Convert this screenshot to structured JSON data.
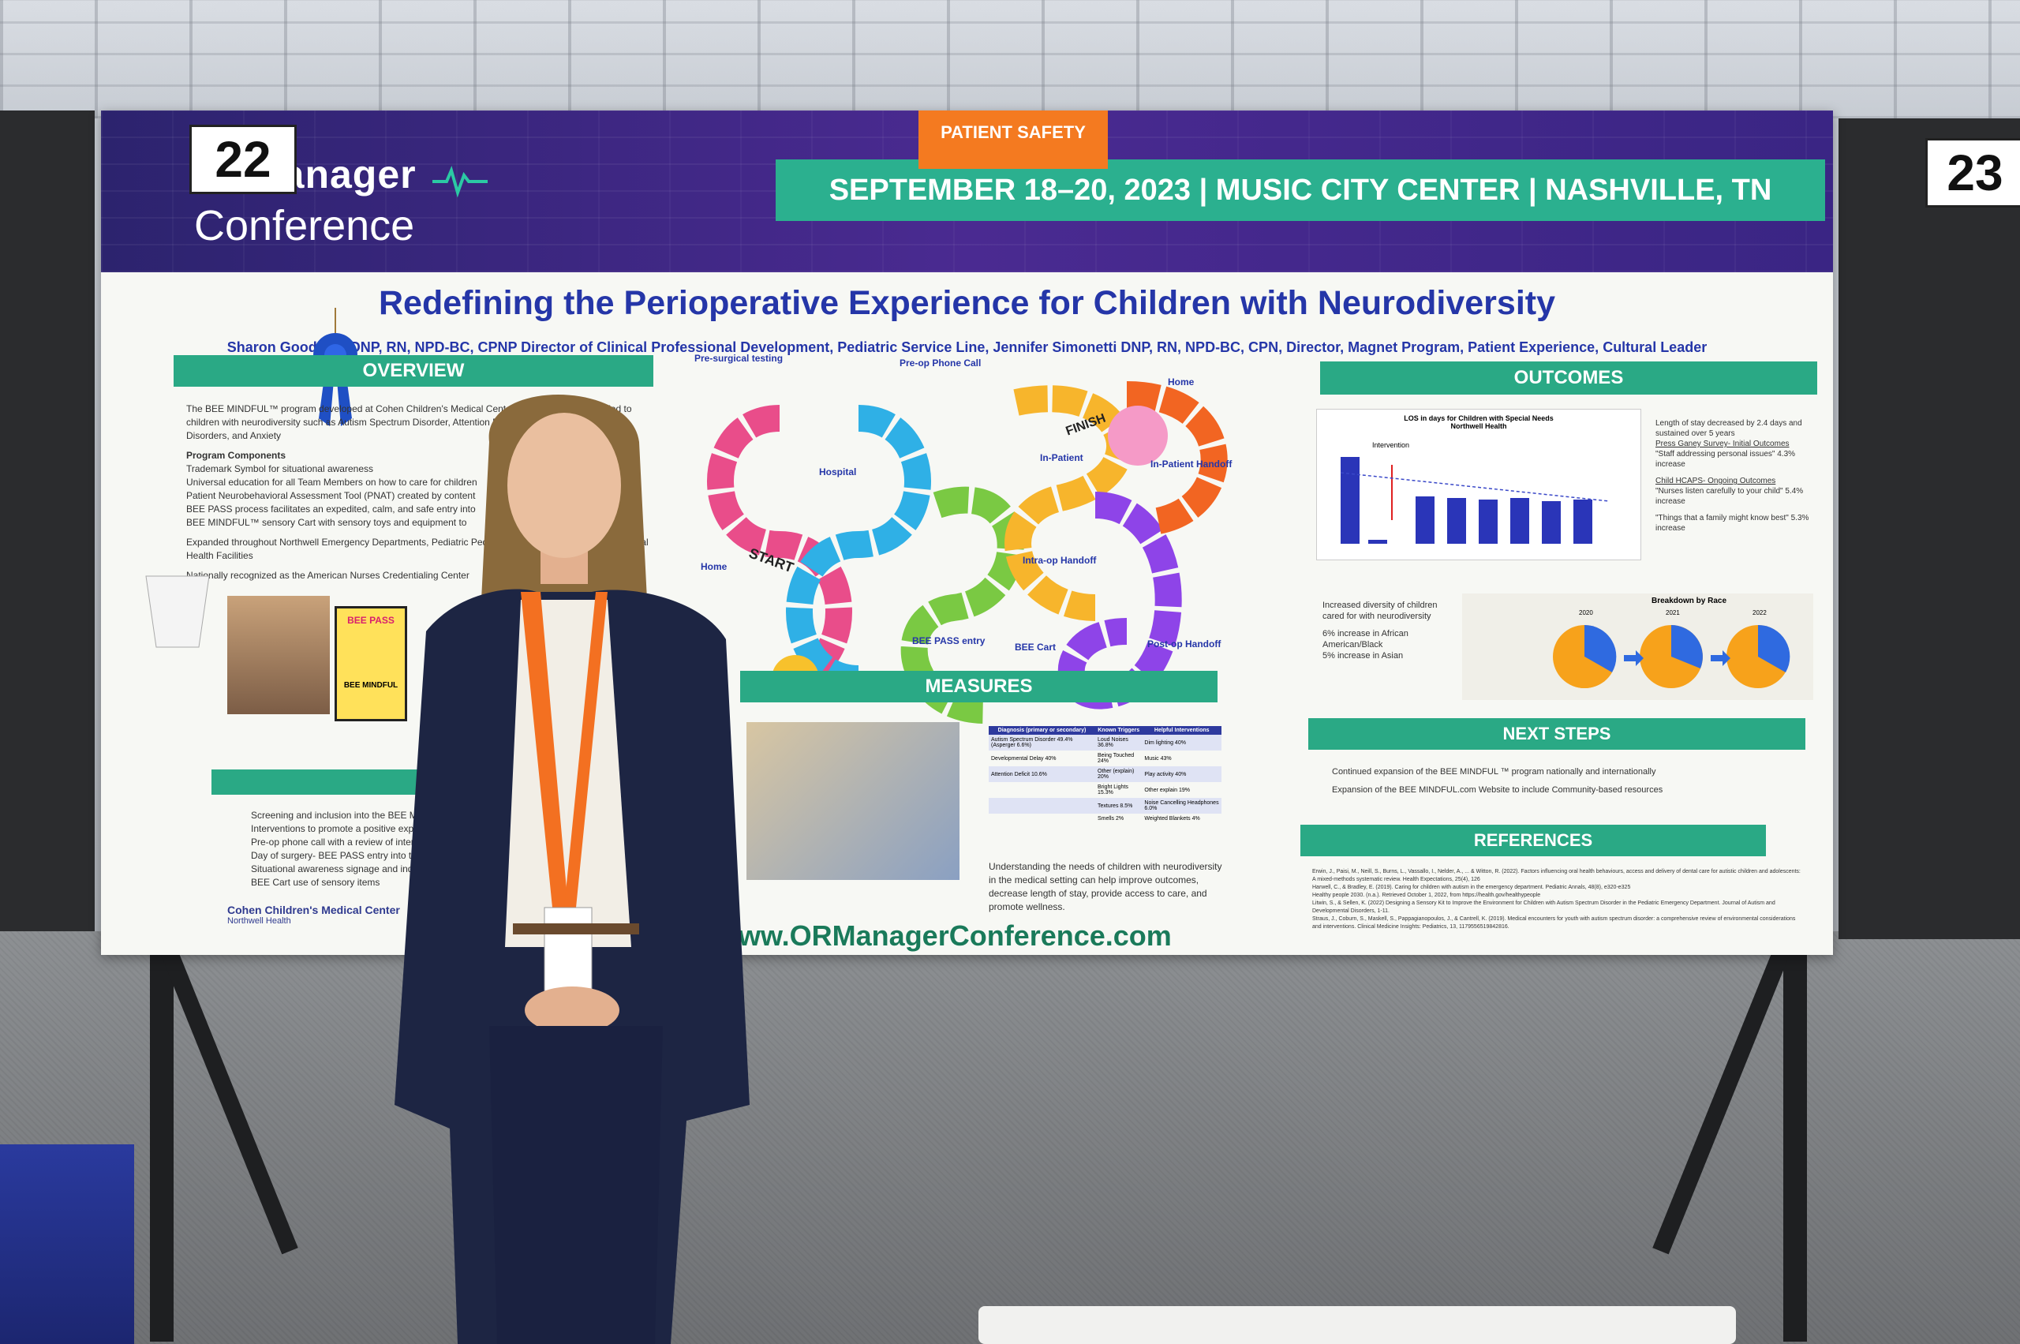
{
  "header": {
    "logo_line1": "ORManager",
    "logo_line2": "Conference",
    "dates_venue": "SEPTEMBER 18–20, 2023 | MUSIC CITY CENTER | NASHVILLE, TN",
    "category_tag": "PATIENT SAFETY",
    "board_number_left": "22",
    "board_number_right": "23"
  },
  "poster": {
    "title": "Redefining the Perioperative Experience for Children with Neurodiversity",
    "authors": "Sharon Goodman DNP, RN, NPD-BC, CPNP Director of Clinical Professional Development, Pediatric Service Line, Jennifer Simonetti DNP, RN, NPD-BC, CPN, Director, Magnet Program, Patient Experience, Cultural Leader",
    "sections": {
      "overview": "OVERVIEW",
      "measures": "MEASURES",
      "outcomes": "OUTCOMES",
      "next_steps": "NEXT STEPS",
      "references": "REFERENCES"
    },
    "overview_text": [
      "The BEE MINDFUL™ program developed at Cohen Children's Medical Center to improve care provided to children with neurodiversity such as Autism Spectrum Disorder, Attention Deficit, Sensory Processing Disorders, and Anxiety",
      "Program Components",
      "Trademark Symbol for situational awareness",
      "Universal education for all Team Members on how to care for children",
      "Patient Neurobehavioral Assessment Tool (PNAT) created by content",
      "BEE PASS process facilitates an expedited, calm, and safe entry into",
      "BEE MINDFUL™ sensory Cart with sensory toys and equipment to",
      "Expanded throughout Northwell Emergency Departments, Pediatric Pediatric and Adult Dental, and Behavioral Health Facilities",
      "Nationally recognized as the American Nurses Credentialing Center"
    ],
    "bee_pass_label": "BEE PASS",
    "bee_mindful_label": "BEE MINDFUL",
    "interventions": [
      "Screening and inclusion into the BEE MINDFUL",
      "Interventions to promote a positive experience",
      "Pre-op phone call with a review of interventions",
      "Day of surgery- BEE PASS entry into the",
      "Situational awareness signage and individual",
      "BEE Cart use of sensory items"
    ],
    "cohen_logo": "Cohen Children's Medical Center",
    "cohen_sub": "Northwell Health",
    "game_labels": {
      "pre_surgical": "Pre-surgical testing",
      "pre_op_call": "Pre-op Phone Call",
      "home_top": "Home",
      "hospital": "Hospital",
      "in_patient": "In-Patient",
      "in_patient_handoff": "In-Patient Handoff",
      "finish": "FINISH",
      "start": "START",
      "home_bottom": "Home",
      "intra_op": "Intra-op Handoff",
      "bee_pass_entry": "BEE PASS entry",
      "bee_cart": "BEE Cart",
      "post_op": "Post-op Handoff"
    },
    "measures_table": {
      "headers": [
        "Diagnosis (primary or secondary)",
        "Known Triggers",
        "Helpful Interventions"
      ],
      "rows": [
        [
          "Autism Spectrum Disorder 49.4% (Asperger 6.6%)",
          "Loud Noises 36.8%",
          "Dim lighting 40%"
        ],
        [
          "Developmental Delay 40%",
          "Being Touched 24%",
          "Music 43%"
        ],
        [
          "Attention Deficit 10.6%",
          "Other (explain) 20%",
          "Play activity 40%"
        ],
        [
          "",
          "Bright Lights 15.3%",
          "Other explain 19%"
        ],
        [
          "",
          "Textures 8.5%",
          "Noise Cancelling Headphones 6.0%"
        ],
        [
          "",
          "Smells 2%",
          "Weighted Blankets 4%"
        ]
      ]
    },
    "measures_text": "Understanding the needs of children with neurodiversity in the medical setting can help improve outcomes, decrease length of stay, provide access to care, and promote wellness.",
    "website": "www.ORManagerConference.com",
    "outcomes_chart_title": "LOS in days for Children with Special Needs",
    "outcomes_chart_subtitle": "Northwell Health",
    "outcomes_chart_marker": "Intervention",
    "outcomes_notes": [
      "Length of stay decreased by 2.4 days and sustained over 5 years",
      "Press Ganey Survey- Initial Outcomes",
      "\"Staff addressing personal issues\" 4.3% increase",
      "Child HCAPS- Ongoing Outcomes",
      "\"Nurses listen carefully to your child\" 5.4% increase",
      "\"Things that a family might know best\" 5.3% increase"
    ],
    "diversity_text": [
      "Increased diversity of children cared for with neurodiversity",
      "6% increase in African American/Black",
      "5% increase in Asian"
    ],
    "race_chart_title": "Breakdown by Race",
    "race_years": [
      "2020",
      "2021",
      "2022"
    ],
    "next_steps": [
      "Continued expansion of the BEE MINDFUL ™ program nationally and internationally",
      "Expansion of the BEE MINDFUL.com Website to include Community-based resources"
    ],
    "references": [
      "Erwin, J., Paisi, M., Neill, S., Burns, L., Vassallo, I., Nelder, A., ... & Witton, R. (2022). Factors influencing oral health behaviours, access and delivery of dental care for autistic children and adolescents: A mixed-methods systematic review. Health Expectations, 25(4), 126",
      "Harwell, C., & Bradley, E. (2019). Caring for children with autism in the emergency department. Pediatric Annals, 48(8), e320-e325",
      "Healthy people 2030. (n.a.). Retrieved October 1, 2022, from https://health.gov/healthypeople",
      "Litwin, S., & Sellen, K. (2022) Designing a Sensory Kit to Improve the Environment for Children with Autism Spectrum Disorder in the Pediatric Emergency Department. Journal of Autism and Developmental Disorders, 1-11.",
      "Straus, J., Coburn, S., Maskell, S., Pappagianopoulos, J., & Cantrell, K. (2019). Medical encounters for youth with autism spectrum disorder: a comprehensive review of environmental considerations and interventions. Clinical Medicine Insights: Pediatrics, 13, 1179556519842816."
    ]
  },
  "colors": {
    "header_purple": "#3b2788",
    "accent_green": "#2aa985",
    "tag_orange": "#f47a20",
    "title_blue": "#2536a8",
    "lanyard_orange": "#f37021"
  }
}
